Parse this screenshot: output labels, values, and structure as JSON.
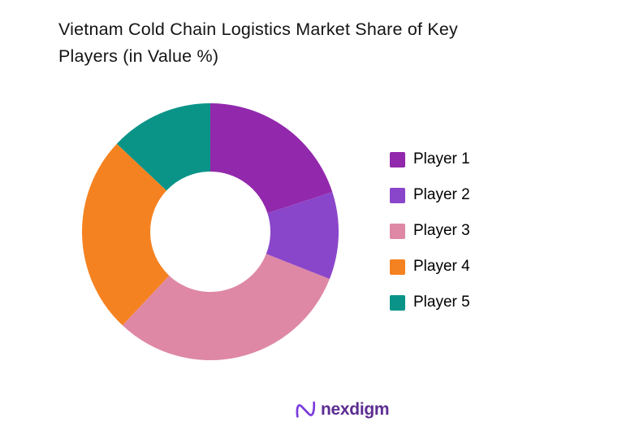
{
  "title": {
    "line1": "Vietnam Cold Chain Logistics Market Share of Key",
    "line2": "Players (in Value %)"
  },
  "chart_data": {
    "type": "pie",
    "subtype": "donut",
    "title": "Vietnam Cold Chain Logistics Market Share of Key Players (in Value %)",
    "categories": [
      "Player 1",
      "Player 2",
      "Player 3",
      "Player 4",
      "Player 5"
    ],
    "values": [
      20,
      11,
      31,
      25,
      13
    ],
    "unit": "percent_of_value",
    "colors": [
      "#9228ac",
      "#8a46ca",
      "#de88a6",
      "#f58220",
      "#0a9488"
    ],
    "start_angle_deg": 0,
    "direction": "clockwise",
    "inner_radius_ratio": 0.47,
    "legend_position": "right",
    "data_labels": false,
    "background": "#ffffff"
  },
  "legend": {
    "items": [
      {
        "label": "Player 1",
        "color": "#9228ac"
      },
      {
        "label": "Player 2",
        "color": "#8a46ca"
      },
      {
        "label": "Player 3",
        "color": "#de88a6"
      },
      {
        "label": "Player 4",
        "color": "#f58220"
      },
      {
        "label": "Player 5",
        "color": "#0a9488"
      }
    ]
  },
  "footer": {
    "brand_name": "nexdigm",
    "brand_text_color": "#5c2d91",
    "brand_mark_color": "#7a3bdc"
  }
}
